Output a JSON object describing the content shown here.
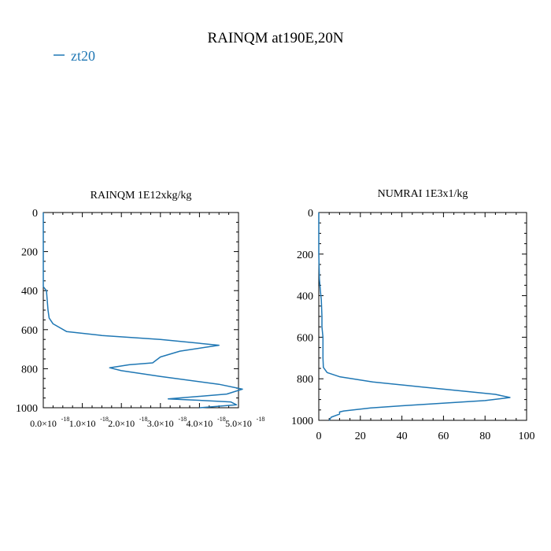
{
  "figure": {
    "title": "RAINQM at190E,20N",
    "legend": {
      "label": "zt20",
      "color": "#1f77b4",
      "placement": "top-left"
    }
  },
  "chart_data": [
    {
      "type": "line",
      "title": "RAINQM  1E12xkg/kg",
      "xlim": [
        0,
        5e-18
      ],
      "ylim": [
        1000,
        0
      ],
      "x_ticks": [
        0,
        1e-18,
        2e-18,
        3e-18,
        4e-18,
        5e-18
      ],
      "x_tick_labels": [
        "0.0×10",
        "1.0×10",
        "2.0×10",
        "3.0×10",
        "4.0×10",
        "5.0×10"
      ],
      "x_tick_exponent": "-18",
      "y_ticks": [
        0,
        200,
        400,
        600,
        800,
        1000
      ],
      "y_tick_labels": [
        "0",
        "200",
        "400",
        "600",
        "800",
        "1000"
      ],
      "grid": false,
      "series": [
        {
          "name": "zt20",
          "color": "#1f77b4",
          "points": [
            [
              0,
              0
            ],
            [
              0,
              100
            ],
            [
              0,
              200
            ],
            [
              0,
              300
            ],
            [
              0,
              380
            ],
            [
              8e-20,
              400
            ],
            [
              1e-19,
              450
            ],
            [
              1.2e-19,
              500
            ],
            [
              1.5e-19,
              540
            ],
            [
              2.5e-19,
              570
            ],
            [
              6e-19,
              610
            ],
            [
              1.5e-18,
              630
            ],
            [
              3e-18,
              650
            ],
            [
              4.5e-18,
              680
            ],
            [
              3.5e-18,
              710
            ],
            [
              3e-18,
              740
            ],
            [
              2.8e-18,
              770
            ],
            [
              2.2e-18,
              780
            ],
            [
              1.7e-18,
              795
            ],
            [
              2e-18,
              810
            ],
            [
              3e-18,
              840
            ],
            [
              4.5e-18,
              880
            ],
            [
              5.1e-18,
              905
            ],
            [
              4.7e-18,
              930
            ],
            [
              3.2e-18,
              955
            ],
            [
              3.8e-18,
              960
            ],
            [
              4.8e-18,
              970
            ],
            [
              4.95e-18,
              985
            ],
            [
              4e-18,
              1000
            ]
          ]
        }
      ]
    },
    {
      "type": "line",
      "title": "NUMRAI  1E3x1/kg",
      "xlim": [
        0,
        100
      ],
      "ylim": [
        1000,
        0
      ],
      "x_ticks": [
        0,
        20,
        40,
        60,
        80,
        100
      ],
      "x_tick_labels": [
        "0",
        "20",
        "40",
        "60",
        "80",
        "100"
      ],
      "y_ticks": [
        0,
        200,
        400,
        600,
        800,
        1000
      ],
      "y_tick_labels": [
        "0",
        "200",
        "400",
        "600",
        "800",
        "1000"
      ],
      "grid": false,
      "series": [
        {
          "name": "zt20",
          "color": "#1f77b4",
          "points": [
            [
              0,
              0
            ],
            [
              0,
              200
            ],
            [
              0.3,
              320
            ],
            [
              0.8,
              380
            ],
            [
              1.2,
              420
            ],
            [
              1.5,
              500
            ],
            [
              1.5,
              550
            ],
            [
              2.0,
              600
            ],
            [
              2.0,
              700
            ],
            [
              2.2,
              745
            ],
            [
              4,
              770
            ],
            [
              10,
              790
            ],
            [
              26,
              815
            ],
            [
              50,
              840
            ],
            [
              70,
              860
            ],
            [
              85,
              875
            ],
            [
              92,
              890
            ],
            [
              80,
              905
            ],
            [
              40,
              930
            ],
            [
              25,
              940
            ],
            [
              12,
              955
            ],
            [
              10,
              960
            ],
            [
              10,
              970
            ],
            [
              6,
              985
            ],
            [
              5,
              1000
            ]
          ]
        }
      ]
    }
  ]
}
